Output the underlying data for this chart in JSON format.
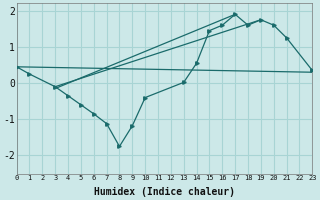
{
  "xlabel": "Humidex (Indice chaleur)",
  "bg_color": "#cce8e8",
  "grid_color": "#a8d4d4",
  "line_color": "#1a6b6b",
  "xlim": [
    0,
    23
  ],
  "ylim": [
    -2.5,
    2.2
  ],
  "yticks": [
    -2,
    -1,
    0,
    1,
    2
  ],
  "xticks": [
    0,
    1,
    2,
    3,
    4,
    5,
    6,
    7,
    8,
    9,
    10,
    11,
    12,
    13,
    14,
    15,
    16,
    17,
    18,
    19,
    20,
    21,
    22,
    23
  ],
  "series": [
    {
      "x": [
        0,
        23
      ],
      "y": [
        0.45,
        0.3
      ],
      "markers": false
    },
    {
      "x": [
        3,
        19
      ],
      "y": [
        -0.1,
        1.75
      ],
      "markers": false
    },
    {
      "x": [
        3,
        17
      ],
      "y": [
        -0.15,
        1.9
      ],
      "markers": false
    },
    {
      "x": [
        0,
        1,
        3,
        4,
        5,
        6,
        7,
        8,
        9,
        10,
        13,
        14,
        15,
        16,
        17,
        18,
        19,
        20,
        21,
        23
      ],
      "y": [
        0.45,
        0.25,
        -0.1,
        -0.35,
        -0.6,
        -0.85,
        -1.12,
        -1.75,
        -1.18,
        -0.4,
        0.02,
        0.55,
        1.45,
        1.6,
        1.9,
        1.6,
        1.75,
        1.6,
        1.25,
        0.35
      ],
      "markers": true
    }
  ]
}
